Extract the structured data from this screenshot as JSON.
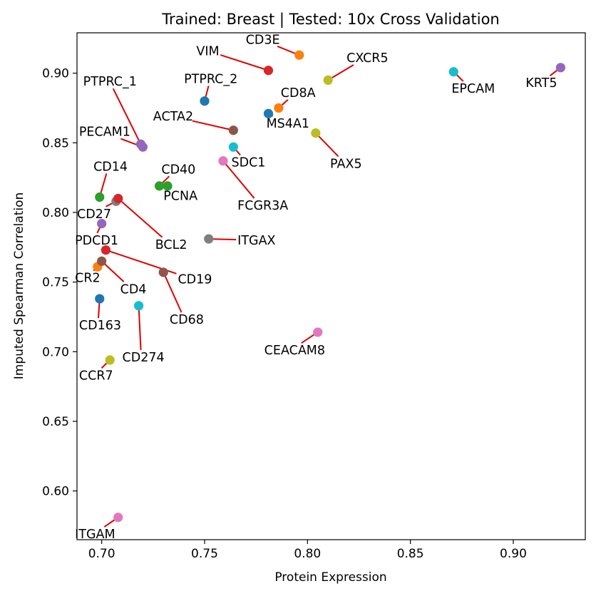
{
  "chart_data": {
    "type": "scatter",
    "title": "Trained: Breast | Tested: 10x Cross Validation",
    "xlabel": "Protein Expression",
    "ylabel": "Imputed Spearman Correlation",
    "xlim": [
      0.688,
      0.935
    ],
    "ylim": [
      0.565,
      0.929
    ],
    "xticks": [
      0.7,
      0.75,
      0.8,
      0.85,
      0.9
    ],
    "yticks": [
      0.6,
      0.65,
      0.7,
      0.75,
      0.8,
      0.85,
      0.9
    ],
    "xtick_labels": [
      "0.70",
      "0.75",
      "0.80",
      "0.85",
      "0.90"
    ],
    "ytick_labels": [
      "0.60",
      "0.65",
      "0.70",
      "0.75",
      "0.80",
      "0.85",
      "0.90"
    ],
    "grid": false,
    "label_line_color": "#e00000",
    "points": [
      {
        "label": "PTPRC_1",
        "x": 0.719,
        "y": 0.849,
        "color": "#9467bd",
        "lx": 0.691,
        "ly": 0.891
      },
      {
        "label": "PECAM1",
        "x": 0.72,
        "y": 0.847,
        "color": "#9467bd",
        "lx": 0.689,
        "ly": 0.855
      },
      {
        "label": "VIM",
        "x": 0.781,
        "y": 0.902,
        "color": "#d62728",
        "lx": 0.746,
        "ly": 0.913
      },
      {
        "label": "CD3E",
        "x": 0.796,
        "y": 0.913,
        "color": "#ff7f0e",
        "lx": 0.77,
        "ly": 0.921
      },
      {
        "label": "CXCR5",
        "x": 0.81,
        "y": 0.895,
        "color": "#bcbd22",
        "lx": 0.819,
        "ly": 0.908
      },
      {
        "label": "PTPRC_2",
        "x": 0.75,
        "y": 0.88,
        "color": "#1f77b4",
        "lx": 0.74,
        "ly": 0.893
      },
      {
        "label": "CD8A",
        "x": 0.786,
        "y": 0.875,
        "color": "#ff7f0e",
        "lx": 0.787,
        "ly": 0.883
      },
      {
        "label": "MS4A1",
        "x": 0.781,
        "y": 0.871,
        "color": "#1f77b4",
        "lx": 0.78,
        "ly": 0.861
      },
      {
        "label": "ACTA2",
        "x": 0.764,
        "y": 0.859,
        "color": "#8c564b",
        "lx": 0.725,
        "ly": 0.866
      },
      {
        "label": "PAX5",
        "x": 0.804,
        "y": 0.857,
        "color": "#bcbd22",
        "lx": 0.811,
        "ly": 0.832
      },
      {
        "label": "SDC1",
        "x": 0.764,
        "y": 0.847,
        "color": "#17becf",
        "lx": 0.763,
        "ly": 0.833
      },
      {
        "label": "FCGR3A",
        "x": 0.759,
        "y": 0.837,
        "color": "#e377c2",
        "lx": 0.766,
        "ly": 0.802
      },
      {
        "label": "EPCAM",
        "x": 0.871,
        "y": 0.901,
        "color": "#17becf",
        "lx": 0.87,
        "ly": 0.886
      },
      {
        "label": "KRT5",
        "x": 0.923,
        "y": 0.904,
        "color": "#9467bd",
        "lx": 0.906,
        "ly": 0.89
      },
      {
        "label": "CD14",
        "x": 0.699,
        "y": 0.811,
        "color": "#2ca02c",
        "lx": 0.696,
        "ly": 0.83
      },
      {
        "label": "CD40",
        "x": 0.728,
        "y": 0.819,
        "color": "#2ca02c",
        "lx": 0.729,
        "ly": 0.828
      },
      {
        "label": "PCNA",
        "x": 0.732,
        "y": 0.819,
        "color": "#2ca02c",
        "lx": 0.73,
        "ly": 0.809
      },
      {
        "label": "CD27",
        "x": 0.707,
        "y": 0.808,
        "color": "#7f7f7f",
        "lx": 0.688,
        "ly": 0.796
      },
      {
        "label": "BCL2",
        "x": 0.708,
        "y": 0.81,
        "color": "#d62728",
        "lx": 0.726,
        "ly": 0.774
      },
      {
        "label": "ITGAX",
        "x": 0.752,
        "y": 0.781,
        "color": "#7f7f7f",
        "lx": 0.766,
        "ly": 0.777
      },
      {
        "label": "PDCD1",
        "x": 0.7,
        "y": 0.792,
        "color": "#9467bd",
        "lx": 0.687,
        "ly": 0.777
      },
      {
        "label": "CD19",
        "x": 0.702,
        "y": 0.773,
        "color": "#d62728",
        "lx": 0.737,
        "ly": 0.749
      },
      {
        "label": "CR2",
        "x": 0.698,
        "y": 0.761,
        "color": "#ff7f0e",
        "lx": 0.687,
        "ly": 0.75
      },
      {
        "label": "CD4",
        "x": 0.7,
        "y": 0.765,
        "color": "#8c564b",
        "lx": 0.709,
        "ly": 0.742
      },
      {
        "label": "CD68",
        "x": 0.73,
        "y": 0.757,
        "color": "#8c564b",
        "lx": 0.733,
        "ly": 0.72
      },
      {
        "label": "CD163",
        "x": 0.699,
        "y": 0.738,
        "color": "#1f77b4",
        "lx": 0.689,
        "ly": 0.716
      },
      {
        "label": "CD274",
        "x": 0.718,
        "y": 0.733,
        "color": "#17becf",
        "lx": 0.71,
        "ly": 0.693
      },
      {
        "label": "CEACAM8",
        "x": 0.805,
        "y": 0.714,
        "color": "#e377c2",
        "lx": 0.779,
        "ly": 0.698
      },
      {
        "label": "CCR7",
        "x": 0.704,
        "y": 0.694,
        "color": "#bcbd22",
        "lx": 0.689,
        "ly": 0.68
      },
      {
        "label": "ITGAM",
        "x": 0.708,
        "y": 0.581,
        "color": "#e377c2",
        "lx": 0.687,
        "ly": 0.566
      }
    ]
  }
}
